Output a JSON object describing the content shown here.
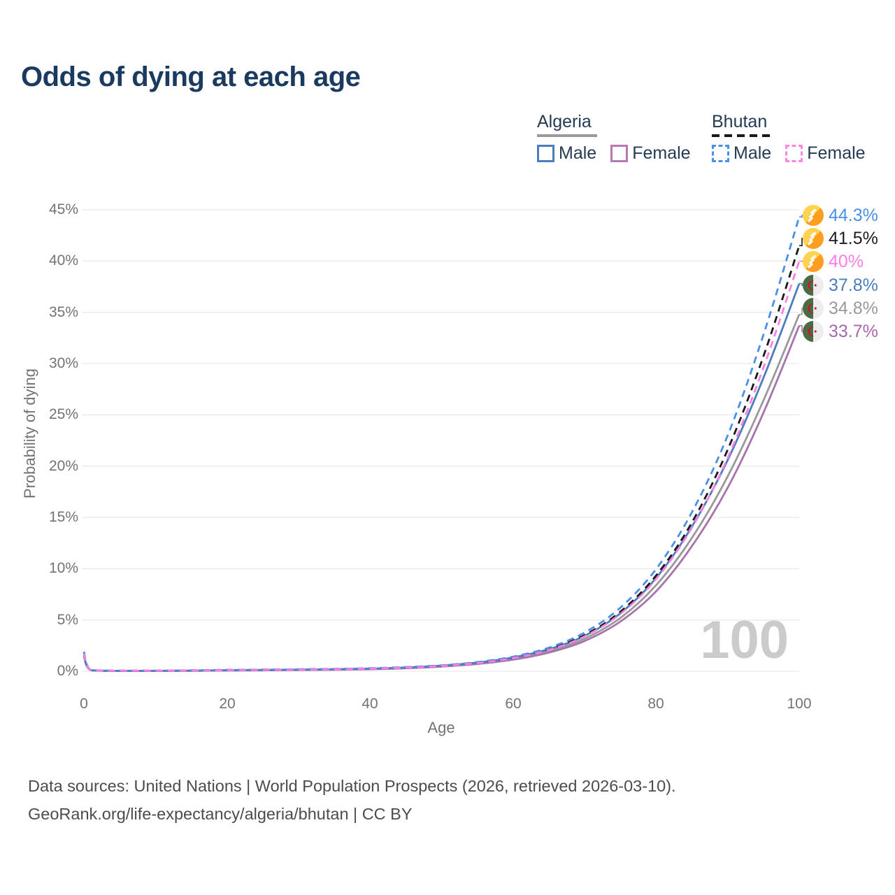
{
  "title": "Odds of dying at each age",
  "legend": {
    "groups": [
      {
        "label": "Algeria",
        "line_style": "solid",
        "underline_color": "#9a9a9a",
        "items": [
          {
            "label": "Male",
            "color": "#4a7ebd"
          },
          {
            "label": "Female",
            "color": "#b57ab3"
          }
        ]
      },
      {
        "label": "Bhutan",
        "line_style": "dashed",
        "underline_color": "#1a1a1a",
        "items": [
          {
            "label": "Male",
            "color": "#4a90e8"
          },
          {
            "label": "Female",
            "color": "#ff85e3"
          }
        ]
      }
    ]
  },
  "chart_data": {
    "type": "line",
    "title": "Odds of dying at each age",
    "xlabel": "Age",
    "ylabel": "Probability of dying",
    "xlim": [
      0,
      100
    ],
    "ylim": [
      0,
      45
    ],
    "grid": "horizontal",
    "x_ticks": [
      "0",
      "20",
      "40",
      "60",
      "80",
      "100"
    ],
    "x_tick_values": [
      0,
      20,
      40,
      60,
      80,
      100
    ],
    "y_ticks": [
      "0%",
      "5%",
      "10%",
      "15%",
      "20%",
      "25%",
      "30%",
      "35%",
      "40%",
      "45%"
    ],
    "y_tick_values": [
      0,
      5,
      10,
      15,
      20,
      25,
      30,
      35,
      40,
      45
    ],
    "x": [
      0,
      1,
      5,
      10,
      15,
      20,
      25,
      30,
      35,
      40,
      45,
      50,
      55,
      60,
      65,
      70,
      75,
      80,
      85,
      90,
      95,
      100
    ],
    "series": [
      {
        "name": "Algeria",
        "country": "Algeria",
        "sex": "all",
        "color": "#9a9a9a",
        "dash": false,
        "end_label": "34.8%",
        "values": [
          1.5,
          0.09,
          0.04,
          0.04,
          0.05,
          0.08,
          0.11,
          0.13,
          0.17,
          0.22,
          0.32,
          0.5,
          0.78,
          1.24,
          1.98,
          3.18,
          5.2,
          8.4,
          13.0,
          19.0,
          26.4,
          34.8
        ]
      },
      {
        "name": "Algeria Female",
        "country": "Algeria",
        "sex": "female",
        "color": "#a873ad",
        "dash": false,
        "end_label": "33.7%",
        "values": [
          1.45,
          0.09,
          0.03,
          0.03,
          0.05,
          0.07,
          0.09,
          0.12,
          0.15,
          0.2,
          0.29,
          0.46,
          0.71,
          1.13,
          1.82,
          2.95,
          4.85,
          7.8,
          12.2,
          17.9,
          25.2,
          33.7
        ]
      },
      {
        "name": "Algeria Male",
        "country": "Algeria",
        "sex": "male",
        "color": "#4a7ebd",
        "dash": false,
        "end_label": "37.8%",
        "values": [
          1.55,
          0.1,
          0.04,
          0.04,
          0.06,
          0.1,
          0.13,
          0.16,
          0.2,
          0.26,
          0.37,
          0.55,
          0.85,
          1.35,
          2.15,
          3.45,
          5.65,
          9.1,
          14.1,
          20.6,
          28.6,
          37.8
        ]
      },
      {
        "name": "Bhutan",
        "country": "Bhutan",
        "sex": "all",
        "color": "#1a1a1a",
        "dash": true,
        "end_label": "41.5%",
        "values": [
          1.8,
          0.11,
          0.05,
          0.05,
          0.08,
          0.12,
          0.15,
          0.18,
          0.21,
          0.27,
          0.38,
          0.54,
          0.83,
          1.33,
          2.16,
          3.53,
          5.81,
          9.34,
          14.5,
          21.6,
          30.7,
          41.5
        ]
      },
      {
        "name": "Bhutan Male",
        "country": "Bhutan",
        "sex": "male",
        "color": "#4a90e8",
        "dash": true,
        "end_label": "44.3%",
        "values": [
          1.9,
          0.12,
          0.06,
          0.06,
          0.09,
          0.13,
          0.16,
          0.19,
          0.23,
          0.29,
          0.41,
          0.58,
          0.89,
          1.42,
          2.3,
          3.77,
          6.2,
          9.97,
          15.5,
          23.0,
          32.8,
          44.3
        ]
      },
      {
        "name": "Bhutan Female",
        "country": "Bhutan",
        "sex": "female",
        "color": "#ff7ee3",
        "dash": true,
        "end_label": "40%",
        "values": [
          1.7,
          0.1,
          0.05,
          0.05,
          0.07,
          0.1,
          0.13,
          0.16,
          0.19,
          0.25,
          0.35,
          0.52,
          0.8,
          1.28,
          2.08,
          3.4,
          5.6,
          9.0,
          14.0,
          20.8,
          29.6,
          40.0
        ]
      }
    ],
    "end_label_colors": [
      "#4a90e8",
      "#1d1d1d",
      "#ff7ee3",
      "#4a7ebd",
      "#9a9a9a",
      "#a868ad"
    ],
    "legend_position": "top-right"
  },
  "watermark": "100",
  "footer": {
    "line1": "Data sources: United Nations | World Population Prospects (2026, retrieved 2026-03-10).",
    "line2": "GeoRank.org/life-expectancy/algeria/bhutan | CC BY"
  }
}
